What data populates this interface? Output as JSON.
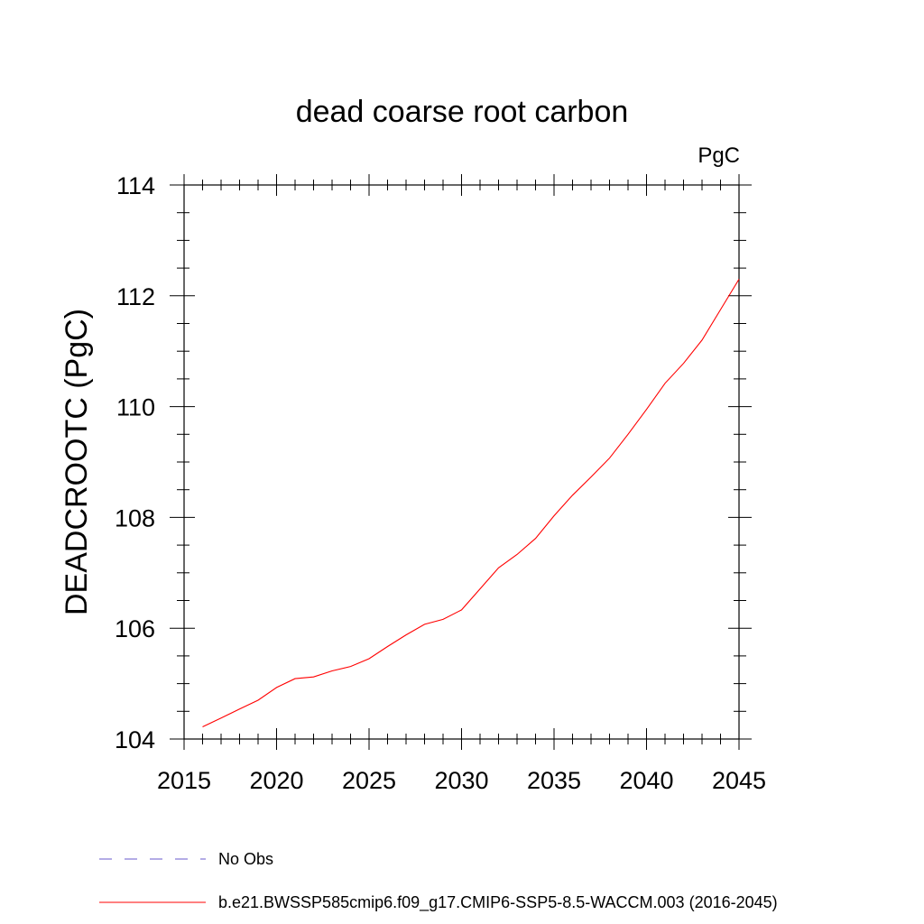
{
  "chart_data": {
    "type": "line",
    "title": "dead coarse root carbon",
    "units_label": "PgC",
    "ylabel": "DEADCROOTC  (PgC)",
    "xlabel": "",
    "xlim": [
      2015,
      2045
    ],
    "ylim": [
      104,
      114
    ],
    "x_ticks": [
      2015,
      2020,
      2025,
      2030,
      2035,
      2040,
      2045
    ],
    "x_tick_labels": [
      "2015",
      "2020",
      "2025",
      "2030",
      "2035",
      "2040",
      "2045"
    ],
    "y_ticks": [
      104,
      106,
      108,
      110,
      112,
      114
    ],
    "y_tick_labels": [
      "104",
      "106",
      "108",
      "110",
      "112",
      "114"
    ],
    "grid": false,
    "legend_position": "bottom",
    "series": [
      {
        "name": "No Obs",
        "color": "#6a5acd",
        "style": "dashed",
        "x": [],
        "y": []
      },
      {
        "name": "b.e21.BWSSP585cmip6.f09_g17.CMIP6-SSP5-8.5-WACCM.003 (2016-2045)",
        "color": "#ff0000",
        "style": "solid",
        "x": [
          2016,
          2017,
          2018,
          2019,
          2020,
          2021,
          2022,
          2023,
          2024,
          2025,
          2026,
          2027,
          2028,
          2029,
          2030,
          2031,
          2032,
          2033,
          2034,
          2035,
          2036,
          2037,
          2038,
          2039,
          2040,
          2041,
          2042,
          2043,
          2044,
          2045
        ],
        "y": [
          104.22,
          104.38,
          104.54,
          104.7,
          104.93,
          105.09,
          105.12,
          105.23,
          105.31,
          105.45,
          105.67,
          105.88,
          106.07,
          106.16,
          106.33,
          106.71,
          107.09,
          107.33,
          107.62,
          108.03,
          108.4,
          108.73,
          109.07,
          109.5,
          109.95,
          110.42,
          110.78,
          111.2,
          111.75,
          112.3
        ]
      }
    ]
  }
}
